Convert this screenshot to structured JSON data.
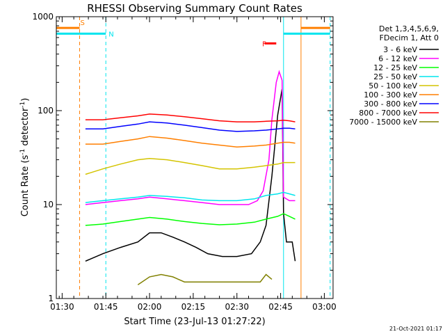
{
  "chart_data": {
    "type": "line",
    "title": "RHESSI Observing Summary Count Rates",
    "xlabel": "Start Time (23-Jul-13 01:27:22)",
    "ylabel_main": "Count Rate (s",
    "ylabel_sup1": "-1",
    "ylabel_mid": " detector",
    "ylabel_sup2": "-1",
    "ylabel_end": ")",
    "ylabel": "Count Rate (s^-1 detector^-1)",
    "yscale": "log",
    "ylim": [
      1,
      1000
    ],
    "xlim_minutes": [
      -2,
      93
    ],
    "x_ticks": [
      {
        "label": "01:30",
        "m": 0
      },
      {
        "label": "01:45",
        "m": 15
      },
      {
        "label": "02:00",
        "m": 30
      },
      {
        "label": "02:15",
        "m": 45
      },
      {
        "label": "02:30",
        "m": 60
      },
      {
        "label": "02:45",
        "m": 75
      },
      {
        "label": "03:00",
        "m": 90
      }
    ],
    "y_ticks": [
      {
        "label": "1",
        "v": 1
      },
      {
        "label": "10",
        "v": 10
      },
      {
        "label": "100",
        "v": 100
      },
      {
        "label": "1000",
        "v": 1000
      }
    ],
    "header": [
      "Det 1,3,4,5,6,9,",
      "FDecim 1, Att 0"
    ],
    "timestamp": "21-Oct-2021 01:17",
    "markers": {
      "S": {
        "label": "S",
        "color": "#ff7f00",
        "m": 6
      },
      "N": {
        "label": "N",
        "color": "#00e5ee",
        "m": 15
      },
      "F": {
        "label": "F",
        "color": "#ff0000",
        "m": 71.5
      }
    },
    "bars": [
      {
        "color": "#ff7f00",
        "m0": -2,
        "m1": 6,
        "level": 760
      },
      {
        "color": "#00e5ee",
        "m0": -2,
        "m1": 15,
        "level": 660
      },
      {
        "color": "#ff0000",
        "m0": 69.5,
        "m1": 73.5,
        "level": 520
      },
      {
        "color": "#00e5ee",
        "m0": 76,
        "m1": 92,
        "level": 660
      },
      {
        "color": "#ff7f00",
        "m0": 82,
        "m1": 92,
        "level": 760
      }
    ],
    "vlines_dashed": [
      {
        "color": "#ff7f00",
        "m": 6
      },
      {
        "color": "#00e5ee",
        "m": 15
      },
      {
        "color": "#00e5ee",
        "m": 92
      }
    ],
    "vlines_solid": [
      {
        "color": "#00e5ee",
        "m": -2
      },
      {
        "color": "#00e5ee",
        "m": 76
      },
      {
        "color": "#ff7f00",
        "m": 82
      }
    ],
    "series": [
      {
        "name": "3 - 6 keV",
        "color": "#000000",
        "points": [
          [
            8,
            2.5
          ],
          [
            14,
            3
          ],
          [
            20,
            3.5
          ],
          [
            26,
            4
          ],
          [
            30,
            5
          ],
          [
            34,
            5
          ],
          [
            38,
            4.5
          ],
          [
            42,
            4
          ],
          [
            46,
            3.5
          ],
          [
            50,
            3
          ],
          [
            55,
            2.8
          ],
          [
            60,
            2.8
          ],
          [
            65,
            3
          ],
          [
            68,
            4
          ],
          [
            70,
            6
          ],
          [
            72,
            20
          ],
          [
            74,
            90
          ],
          [
            75.5,
            170
          ],
          [
            76,
            8
          ],
          [
            77,
            4
          ],
          [
            79,
            4
          ],
          [
            80,
            2.5
          ]
        ]
      },
      {
        "name": "6 - 12 keV",
        "color": "#ff00ff",
        "points": [
          [
            8,
            10
          ],
          [
            14,
            10.5
          ],
          [
            20,
            11
          ],
          [
            26,
            11.5
          ],
          [
            30,
            12
          ],
          [
            36,
            11.5
          ],
          [
            42,
            11
          ],
          [
            48,
            10.5
          ],
          [
            54,
            10
          ],
          [
            60,
            10
          ],
          [
            64,
            10
          ],
          [
            67,
            11
          ],
          [
            69,
            14
          ],
          [
            71,
            30
          ],
          [
            72,
            80
          ],
          [
            73.5,
            200
          ],
          [
            74.5,
            260
          ],
          [
            75.5,
            210
          ],
          [
            76,
            12
          ],
          [
            78,
            11
          ],
          [
            80,
            11
          ]
        ]
      },
      {
        "name": "12 - 25 keV",
        "color": "#00ff00",
        "points": [
          [
            8,
            6
          ],
          [
            14,
            6.2
          ],
          [
            20,
            6.6
          ],
          [
            26,
            7
          ],
          [
            30,
            7.3
          ],
          [
            36,
            7
          ],
          [
            42,
            6.6
          ],
          [
            48,
            6.3
          ],
          [
            54,
            6.1
          ],
          [
            60,
            6.2
          ],
          [
            66,
            6.5
          ],
          [
            70,
            7
          ],
          [
            74,
            7.5
          ],
          [
            76,
            8
          ],
          [
            78,
            7.5
          ],
          [
            80,
            7
          ]
        ]
      },
      {
        "name": "25 - 50 keV",
        "color": "#00e5ee",
        "points": [
          [
            8,
            10.5
          ],
          [
            14,
            11
          ],
          [
            20,
            11.5
          ],
          [
            26,
            12
          ],
          [
            30,
            12.5
          ],
          [
            36,
            12.2
          ],
          [
            42,
            11.8
          ],
          [
            48,
            11.2
          ],
          [
            54,
            11
          ],
          [
            60,
            11
          ],
          [
            66,
            11.5
          ],
          [
            70,
            12.5
          ],
          [
            74,
            13
          ],
          [
            76,
            13.5
          ],
          [
            78,
            13
          ],
          [
            80,
            12.5
          ]
        ]
      },
      {
        "name": "50 - 100 keV",
        "color": "#d4c400",
        "points": [
          [
            8,
            21
          ],
          [
            14,
            24
          ],
          [
            20,
            27
          ],
          [
            26,
            30
          ],
          [
            30,
            31
          ],
          [
            36,
            30
          ],
          [
            42,
            28
          ],
          [
            48,
            26
          ],
          [
            54,
            24
          ],
          [
            60,
            24
          ],
          [
            66,
            25
          ],
          [
            70,
            26
          ],
          [
            74,
            27
          ],
          [
            76,
            28
          ],
          [
            78,
            28
          ],
          [
            80,
            28
          ]
        ]
      },
      {
        "name": "100 - 300 keV",
        "color": "#ff7f00",
        "points": [
          [
            8,
            44
          ],
          [
            14,
            44
          ],
          [
            20,
            47
          ],
          [
            26,
            50
          ],
          [
            30,
            53
          ],
          [
            36,
            51
          ],
          [
            42,
            48
          ],
          [
            48,
            45
          ],
          [
            54,
            43
          ],
          [
            60,
            41
          ],
          [
            66,
            42
          ],
          [
            70,
            43
          ],
          [
            74,
            45
          ],
          [
            76,
            46
          ],
          [
            78,
            46
          ],
          [
            80,
            45
          ]
        ]
      },
      {
        "name": "300 - 800 keV",
        "color": "#0000ff",
        "points": [
          [
            8,
            64
          ],
          [
            14,
            64
          ],
          [
            20,
            68
          ],
          [
            26,
            72
          ],
          [
            30,
            76
          ],
          [
            36,
            74
          ],
          [
            42,
            70
          ],
          [
            48,
            66
          ],
          [
            54,
            62
          ],
          [
            60,
            60
          ],
          [
            66,
            61
          ],
          [
            70,
            62
          ],
          [
            74,
            64
          ],
          [
            76,
            65
          ],
          [
            78,
            65
          ],
          [
            80,
            64
          ]
        ]
      },
      {
        "name": "800 - 7000 keV",
        "color": "#ff0000",
        "points": [
          [
            8,
            80
          ],
          [
            14,
            80
          ],
          [
            20,
            84
          ],
          [
            26,
            88
          ],
          [
            30,
            92
          ],
          [
            36,
            90
          ],
          [
            42,
            86
          ],
          [
            48,
            82
          ],
          [
            54,
            78
          ],
          [
            60,
            76
          ],
          [
            66,
            76
          ],
          [
            70,
            77
          ],
          [
            74,
            78
          ],
          [
            76,
            79
          ],
          [
            78,
            78
          ],
          [
            80,
            76
          ]
        ]
      },
      {
        "name": "7000 - 15000 keV",
        "color": "#808000",
        "points": [
          [
            26,
            1.4
          ],
          [
            30,
            1.7
          ],
          [
            34,
            1.8
          ],
          [
            38,
            1.7
          ],
          [
            42,
            1.5
          ],
          [
            68,
            1.5
          ],
          [
            70,
            1.8
          ],
          [
            72,
            1.6
          ]
        ]
      }
    ]
  }
}
